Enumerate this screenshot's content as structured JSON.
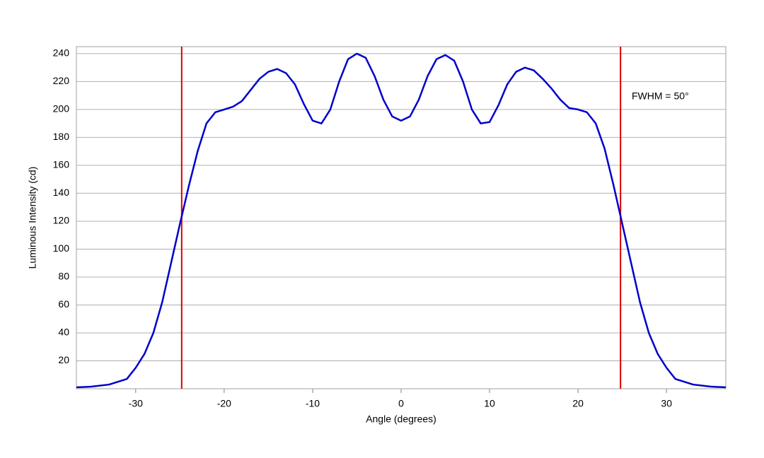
{
  "chart_data": {
    "type": "line",
    "x_label": "Angle (degrees)",
    "y_label": "Luminous Intensity (cd)",
    "annotation": "FWHM = 50°",
    "x": [
      -36.7,
      -35,
      -33,
      -31,
      -30,
      -29,
      -28,
      -27,
      -26,
      -25,
      -24,
      -23,
      -22,
      -21,
      -20,
      -19,
      -18,
      -17,
      -16,
      -15,
      -14,
      -13,
      -12,
      -11,
      -10,
      -9,
      -8,
      -7,
      -6,
      -5,
      -4,
      -3,
      -2,
      -1,
      0,
      1,
      2,
      3,
      4,
      5,
      6,
      7,
      8,
      9,
      10,
      11,
      12,
      13,
      14,
      15,
      16,
      17,
      18,
      19,
      20,
      21,
      22,
      23,
      24,
      25,
      26,
      27,
      28,
      29,
      30,
      31,
      33,
      35,
      36.7
    ],
    "values": [
      1,
      1.5,
      3,
      7,
      15,
      25,
      40,
      62,
      90,
      118,
      145,
      170,
      190,
      198,
      200,
      202,
      206,
      214,
      222,
      227,
      229,
      226,
      218,
      204,
      192,
      190,
      200,
      220,
      236,
      240,
      237,
      224,
      207,
      195,
      192,
      195,
      207,
      224,
      236,
      239,
      235,
      220,
      200,
      190,
      191,
      203,
      218,
      227,
      230,
      228,
      222,
      215,
      207,
      201,
      200,
      198,
      190,
      172,
      146,
      118,
      90,
      62,
      40,
      25,
      15,
      7,
      3,
      1.5,
      1
    ],
    "color": "#0000cc",
    "vlines": [
      -24.8,
      24.8
    ],
    "vline_color": "#dd0000",
    "xlim": [
      -36.7,
      36.7
    ],
    "xticks": [
      -30,
      -20,
      -10,
      0,
      10,
      20,
      30
    ],
    "ylim": [
      0,
      245
    ],
    "yticks": [
      20,
      40,
      60,
      80,
      100,
      120,
      140,
      160,
      180,
      200,
      220,
      240
    ],
    "grid": true
  }
}
